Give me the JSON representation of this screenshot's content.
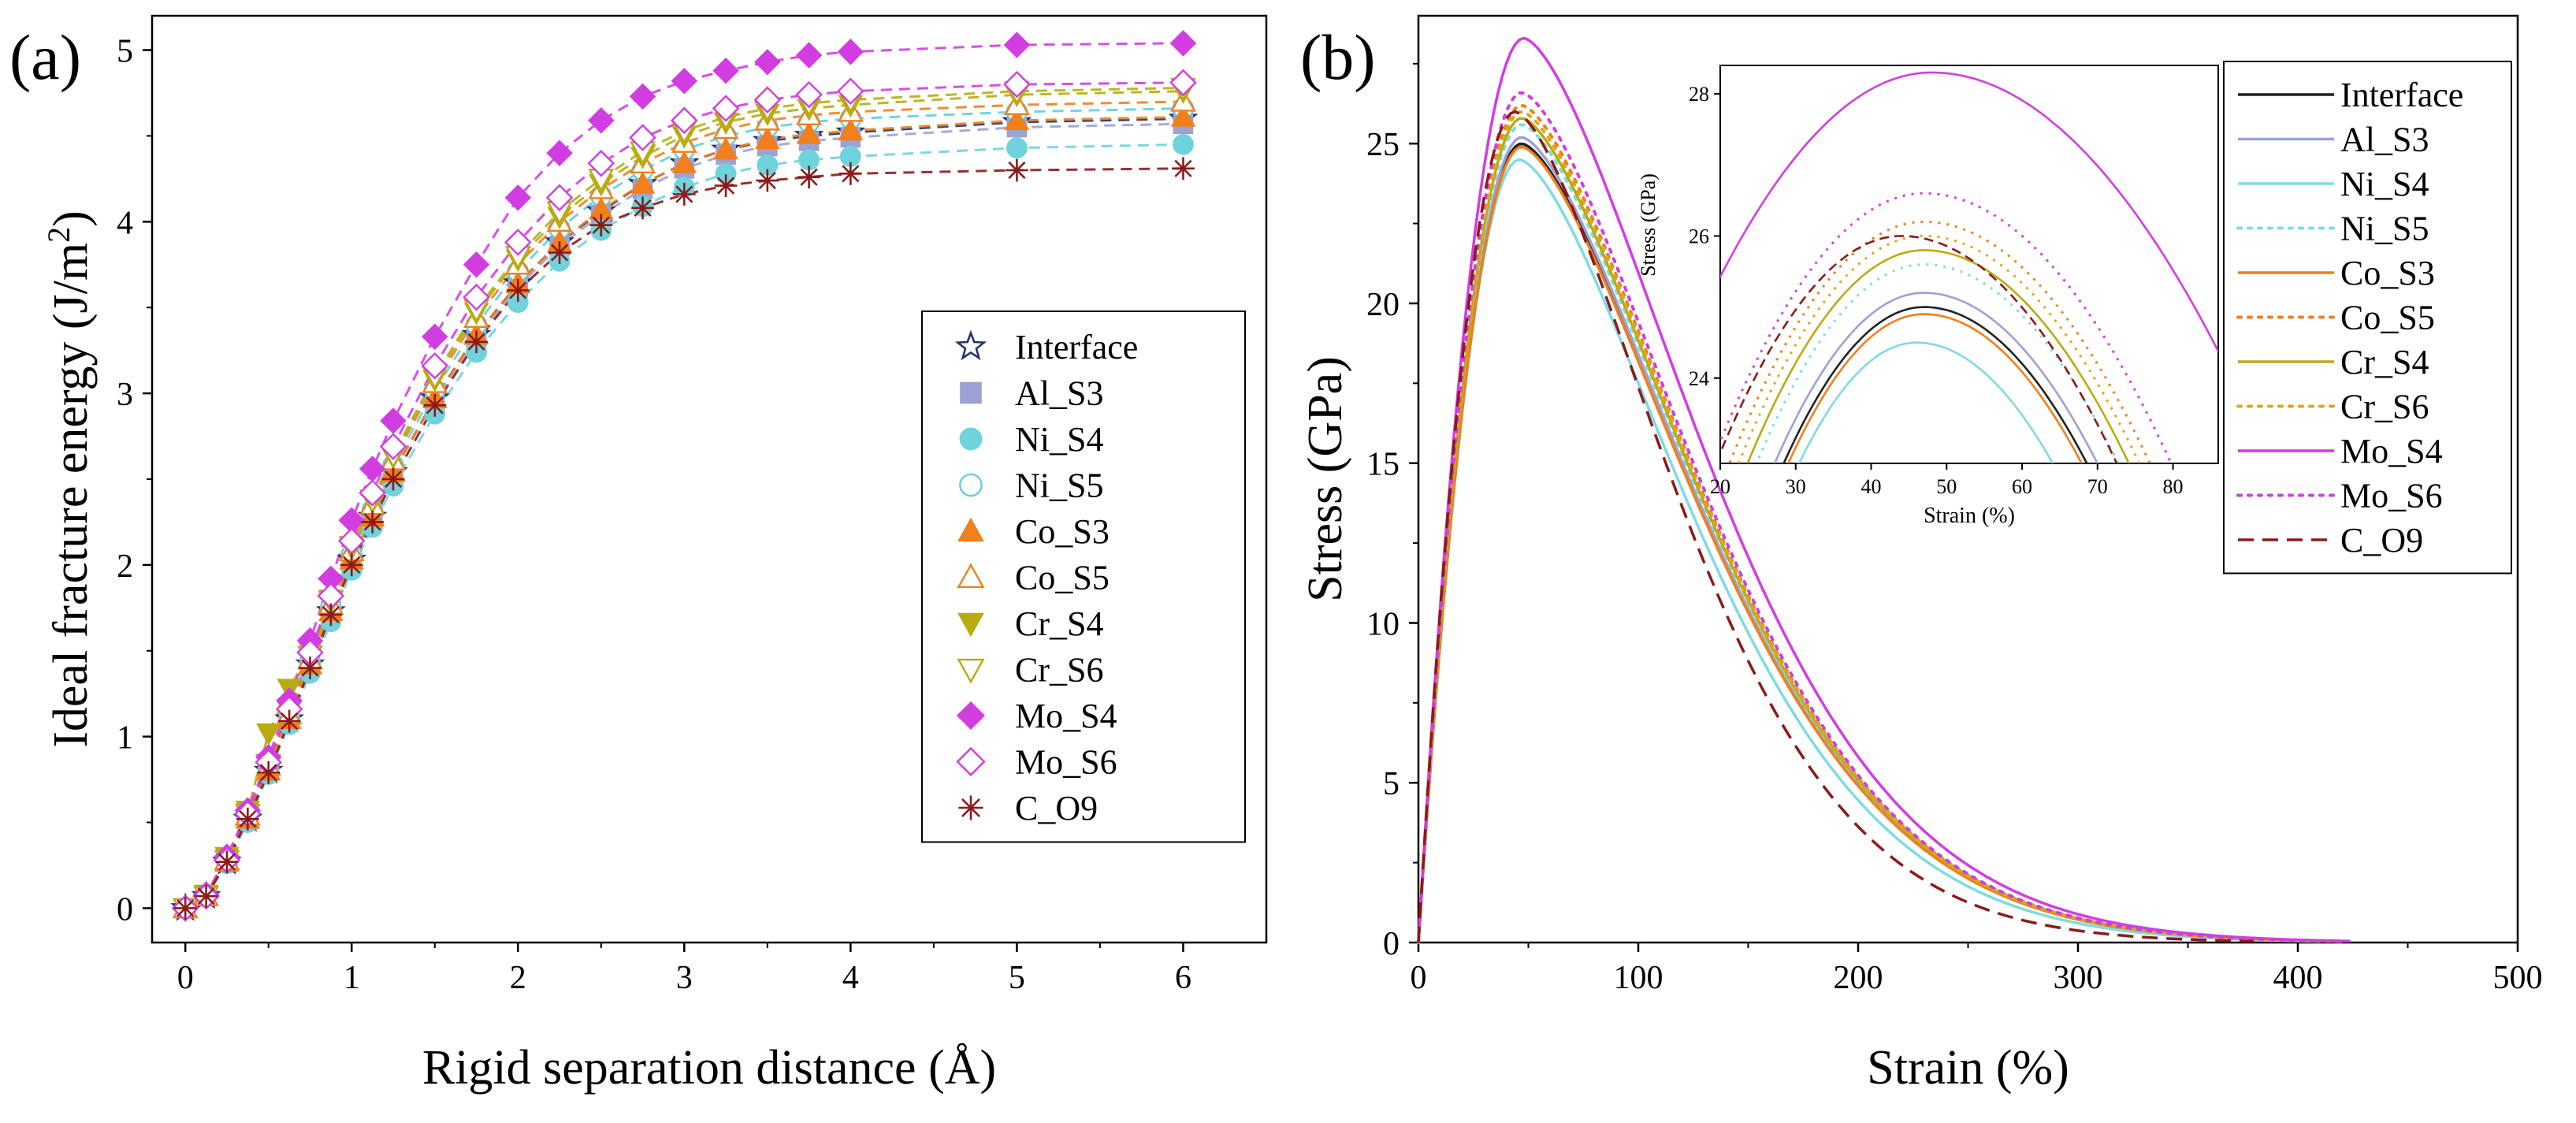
{
  "panel_a_label": "(a)",
  "panel_b_label": "(b)",
  "chart_data": [
    {
      "id": "a",
      "type": "scatter",
      "xlabel": "Rigid separation distance (Å)",
      "ylabel": "Ideal fracture energy (J/m²)",
      "ylabel_main": "Ideal fracture energy (J/m",
      "ylabel_sup": "2",
      "ylabel_tail": ")",
      "xlim": [
        -0.2,
        6.5
      ],
      "ylim": [
        -0.2,
        5.2
      ],
      "xticks": [
        "0",
        "1",
        "2",
        "3",
        "4",
        "5",
        "6"
      ],
      "yticks": [
        "0",
        "1",
        "2",
        "3",
        "4",
        "5"
      ],
      "grid": false,
      "legend_position": "right-middle",
      "x": [
        0,
        0.125,
        0.25,
        0.375,
        0.5,
        0.625,
        0.75,
        0.875,
        1.0,
        1.125,
        1.25,
        1.5,
        1.75,
        2.0,
        2.25,
        2.5,
        2.75,
        3.0,
        3.25,
        3.5,
        3.75,
        4.0,
        5.0,
        6.0
      ],
      "series": [
        {
          "name": "Interface",
          "marker": "star-open",
          "color": "#26336a",
          "dashed": true,
          "values": [
            0,
            0.07,
            0.27,
            0.52,
            0.8,
            1.1,
            1.42,
            1.73,
            2.03,
            2.28,
            2.54,
            2.97,
            3.34,
            3.64,
            3.88,
            4.06,
            4.22,
            4.34,
            4.42,
            4.47,
            4.5,
            4.52,
            4.58,
            4.6
          ]
        },
        {
          "name": "Al_S3",
          "marker": "square-filled",
          "color": "#9da1d4",
          "dashed": true,
          "values": [
            0,
            0.07,
            0.27,
            0.52,
            0.8,
            1.1,
            1.42,
            1.73,
            2.03,
            2.28,
            2.54,
            2.96,
            3.32,
            3.62,
            3.86,
            4.04,
            4.19,
            4.31,
            4.39,
            4.44,
            4.47,
            4.49,
            4.55,
            4.57
          ]
        },
        {
          "name": "Ni_S4",
          "marker": "circle-filled",
          "color": "#6fd3dc",
          "dashed": true,
          "values": [
            0,
            0.07,
            0.26,
            0.5,
            0.78,
            1.07,
            1.37,
            1.67,
            1.97,
            2.22,
            2.46,
            2.88,
            3.24,
            3.53,
            3.77,
            3.95,
            4.09,
            4.2,
            4.28,
            4.33,
            4.36,
            4.38,
            4.43,
            4.45
          ]
        },
        {
          "name": "Ni_S5",
          "marker": "circle-open",
          "color": "#62cfe0",
          "dashed": true,
          "values": [
            0,
            0.07,
            0.27,
            0.53,
            0.81,
            1.11,
            1.43,
            1.75,
            2.06,
            2.32,
            2.58,
            3.02,
            3.4,
            3.71,
            3.96,
            4.15,
            4.3,
            4.42,
            4.5,
            4.55,
            4.58,
            4.6,
            4.64,
            4.66
          ]
        },
        {
          "name": "Co_S3",
          "marker": "triangle-up-filled",
          "color": "#f07f1c",
          "dashed": true,
          "values": [
            0,
            0.07,
            0.27,
            0.52,
            0.8,
            1.1,
            1.42,
            1.73,
            2.03,
            2.28,
            2.54,
            2.97,
            3.34,
            3.64,
            3.88,
            4.07,
            4.22,
            4.34,
            4.42,
            4.48,
            4.51,
            4.53,
            4.59,
            4.61
          ]
        },
        {
          "name": "Co_S5",
          "marker": "triangle-up-open",
          "color": "#f07f1c",
          "dashed": true,
          "values": [
            0,
            0.07,
            0.28,
            0.54,
            0.83,
            1.13,
            1.45,
            1.77,
            2.08,
            2.35,
            2.61,
            3.06,
            3.44,
            3.75,
            4.0,
            4.19,
            4.34,
            4.46,
            4.54,
            4.59,
            4.62,
            4.64,
            4.68,
            4.7
          ]
        },
        {
          "name": "Cr_S4",
          "marker": "triangle-down-filled",
          "color": "#b8ac12",
          "dashed": true,
          "values": [
            0,
            0.08,
            0.3,
            0.57,
            1.02,
            1.28,
            1.5,
            1.8,
            2.1,
            2.37,
            2.63,
            3.08,
            3.47,
            3.78,
            4.03,
            4.22,
            4.38,
            4.5,
            4.58,
            4.63,
            4.66,
            4.68,
            4.74,
            4.76
          ]
        },
        {
          "name": "Cr_S6",
          "marker": "triangle-down-open",
          "color": "#b8ac12",
          "dashed": true,
          "values": [
            0,
            0.07,
            0.28,
            0.55,
            0.84,
            1.15,
            1.47,
            1.79,
            2.11,
            2.38,
            2.64,
            3.1,
            3.49,
            3.8,
            4.06,
            4.25,
            4.41,
            4.53,
            4.61,
            4.66,
            4.69,
            4.71,
            4.76,
            4.78
          ]
        },
        {
          "name": "Mo_S4",
          "marker": "diamond-filled",
          "color": "#d23de1",
          "dashed": true,
          "values": [
            0,
            0.08,
            0.3,
            0.57,
            0.88,
            1.21,
            1.56,
            1.92,
            2.26,
            2.56,
            2.84,
            3.33,
            3.75,
            4.14,
            4.4,
            4.59,
            4.73,
            4.82,
            4.88,
            4.93,
            4.97,
            4.99,
            5.03,
            5.04
          ]
        },
        {
          "name": "Mo_S6",
          "marker": "diamond-open",
          "color": "#d23de1",
          "dashed": true,
          "values": [
            0,
            0.07,
            0.28,
            0.55,
            0.85,
            1.16,
            1.49,
            1.82,
            2.14,
            2.42,
            2.69,
            3.16,
            3.56,
            3.88,
            4.14,
            4.34,
            4.49,
            4.59,
            4.66,
            4.71,
            4.74,
            4.76,
            4.8,
            4.81
          ]
        },
        {
          "name": "C_O9",
          "marker": "asterisk",
          "color": "#8b1a1a",
          "dashed": true,
          "values": [
            0,
            0.07,
            0.27,
            0.52,
            0.79,
            1.09,
            1.4,
            1.71,
            2.0,
            2.25,
            2.5,
            2.93,
            3.3,
            3.6,
            3.82,
            3.98,
            4.08,
            4.16,
            4.21,
            4.24,
            4.26,
            4.28,
            4.3,
            4.31
          ]
        }
      ]
    },
    {
      "id": "b",
      "type": "line",
      "xlabel": "Strain (%)",
      "ylabel": "Stress (GPa)",
      "xlim": [
        0,
        500
      ],
      "ylim": [
        0,
        29
      ],
      "xticks": [
        "0",
        "100",
        "200",
        "300",
        "400",
        "500"
      ],
      "yticks": [
        "0",
        "5",
        "10",
        "15",
        "20",
        "25"
      ],
      "grid": false,
      "legend_position": "top-right (outside inset)",
      "series": [
        {
          "name": "Interface",
          "color": "#222222",
          "style": "solid",
          "peak_strain": 47,
          "peak_stress": 25.0,
          "end_strain": 420
        },
        {
          "name": "Al_S3",
          "color": "#9da1d4",
          "style": "solid",
          "peak_strain": 47,
          "peak_stress": 25.2,
          "end_strain": 420
        },
        {
          "name": "Ni_S4",
          "color": "#7fdbe3",
          "style": "solid",
          "peak_strain": 46,
          "peak_stress": 24.5,
          "end_strain": 410
        },
        {
          "name": "Ni_S5",
          "color": "#7fdbe3",
          "style": "dotted",
          "peak_strain": 47,
          "peak_stress": 25.6,
          "end_strain": 420
        },
        {
          "name": "Co_S3",
          "color": "#f07f1c",
          "style": "solid",
          "peak_strain": 47,
          "peak_stress": 24.9,
          "end_strain": 420
        },
        {
          "name": "Co_S5",
          "color": "#f07f1c",
          "style": "dotted",
          "peak_strain": 47,
          "peak_stress": 26.2,
          "end_strain": 420
        },
        {
          "name": "Cr_S4",
          "color": "#b8ac12",
          "style": "solid",
          "peak_strain": 47,
          "peak_stress": 25.8,
          "end_strain": 420
        },
        {
          "name": "Cr_S6",
          "color": "#d9a81a",
          "style": "dotted",
          "peak_strain": 47,
          "peak_stress": 26.0,
          "end_strain": 420
        },
        {
          "name": "Mo_S4",
          "color": "#d23de1",
          "style": "solid",
          "peak_strain": 48,
          "peak_stress": 28.3,
          "end_strain": 425
        },
        {
          "name": "Mo_S6",
          "color": "#d23de1",
          "style": "dotted",
          "peak_strain": 47,
          "peak_stress": 26.6,
          "end_strain": 420
        },
        {
          "name": "C_O9",
          "color": "#8b1a1a",
          "style": "dashed",
          "peak_strain": 44,
          "peak_stress": 26.0,
          "end_strain": 380
        }
      ],
      "inset": {
        "xlabel": "Strain (%)",
        "ylabel": "Stress (GPa)",
        "xlim": [
          20,
          86
        ],
        "ylim": [
          22.8,
          28.4
        ],
        "xticks": [
          "20",
          "30",
          "40",
          "50",
          "60",
          "70",
          "80"
        ],
        "yticks": [
          "24",
          "26",
          "28"
        ]
      }
    }
  ]
}
